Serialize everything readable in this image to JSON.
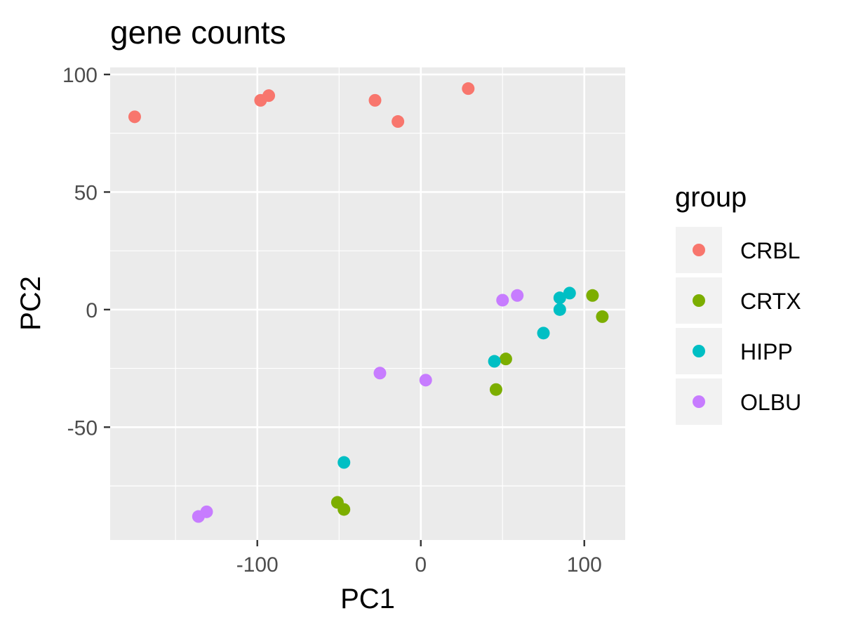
{
  "chart_data": {
    "type": "scatter",
    "title": "gene counts",
    "xlabel": "PC1",
    "ylabel": "PC2",
    "xlim": [
      -190,
      125
    ],
    "ylim": [
      -98,
      103
    ],
    "x_ticks": [
      -100,
      0,
      100
    ],
    "y_ticks": [
      100,
      50,
      0,
      -50
    ],
    "x_tick_labels": [
      "-100",
      "0",
      "100"
    ],
    "y_tick_labels": [
      "100",
      "50",
      "0",
      "-50"
    ],
    "grid": true,
    "legend_title": "group",
    "legend_position": "right",
    "series": [
      {
        "name": "CRBL",
        "color": "#F8766D",
        "points": [
          [
            -175,
            82
          ],
          [
            -98,
            89
          ],
          [
            -93,
            91
          ],
          [
            -28,
            89
          ],
          [
            -14,
            80
          ],
          [
            29,
            94
          ]
        ]
      },
      {
        "name": "CRTX",
        "color": "#7CAE00",
        "points": [
          [
            105,
            6
          ],
          [
            111,
            -3
          ],
          [
            52,
            -21
          ],
          [
            46,
            -34
          ],
          [
            -51,
            -82
          ],
          [
            -47,
            -85
          ]
        ]
      },
      {
        "name": "HIPP",
        "color": "#00BFC4",
        "points": [
          [
            91,
            7
          ],
          [
            85,
            5
          ],
          [
            85,
            0
          ],
          [
            75,
            -10
          ],
          [
            45,
            -22
          ],
          [
            -47,
            -65
          ]
        ]
      },
      {
        "name": "OLBU",
        "color": "#C77CFF",
        "points": [
          [
            59,
            6
          ],
          [
            50,
            4
          ],
          [
            -25,
            -27
          ],
          [
            3,
            -30
          ],
          [
            -136,
            -88
          ],
          [
            -131,
            -86
          ]
        ]
      }
    ]
  }
}
